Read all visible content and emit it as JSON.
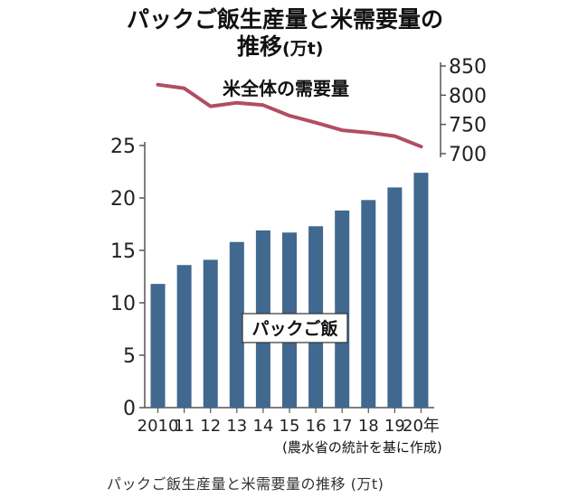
{
  "title_line1": "パックご飯生産量と米需要量の",
  "title_line2": "推移",
  "title_unit": "(万t)",
  "source": "(農水省の統計を基に作成)",
  "caption": "パックご飯生産量と米需要量の推移 (万t)",
  "colors": {
    "bar": "#41688f",
    "line": "#b24d62",
    "axis": "#555555"
  },
  "chart_data": {
    "type": "bar+line",
    "categories": [
      "2010",
      "11",
      "12",
      "13",
      "14",
      "15",
      "16",
      "17",
      "18",
      "19",
      "20年"
    ],
    "bar_series": {
      "name": "パックご飯",
      "values": [
        11.8,
        13.6,
        14.1,
        15.8,
        16.9,
        16.7,
        17.3,
        18.8,
        19.8,
        21.0,
        22.4
      ],
      "axis": "left",
      "ylim": [
        0,
        25
      ],
      "ticks": [
        "0",
        "5",
        "10",
        "15",
        "20",
        "25"
      ]
    },
    "line_series": {
      "name": "米全体の需要量",
      "values": [
        818,
        812,
        781,
        787,
        783,
        765,
        753,
        740,
        736,
        730,
        712
      ],
      "axis": "right",
      "ylim": [
        700,
        850
      ],
      "ticks": [
        "700",
        "750",
        "800",
        "850"
      ]
    }
  }
}
